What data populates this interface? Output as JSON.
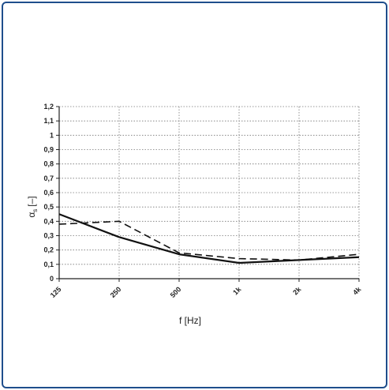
{
  "chart_data": {
    "type": "line",
    "xlabel": "f [Hz]",
    "ylabel": "α",
    "ylabel_sub": "s",
    "ylabel_unit": "[–]",
    "categories": [
      "125",
      "250",
      "500",
      "1k",
      "2k",
      "4k"
    ],
    "ylim": [
      0,
      1.2
    ],
    "yticks": [
      "0",
      "0,1",
      "0,2",
      "0,3",
      "0,4",
      "0,5",
      "0,6",
      "0,7",
      "0,8",
      "0,9",
      "1",
      "1,1",
      "1,2"
    ],
    "grid": true,
    "series": [
      {
        "style": "solid",
        "color": "#111111",
        "values": [
          0.45,
          0.29,
          0.17,
          0.11,
          0.13,
          0.15
        ]
      },
      {
        "style": "dashed",
        "color": "#111111",
        "values": [
          0.38,
          0.4,
          0.18,
          0.14,
          0.13,
          0.17
        ]
      }
    ]
  }
}
